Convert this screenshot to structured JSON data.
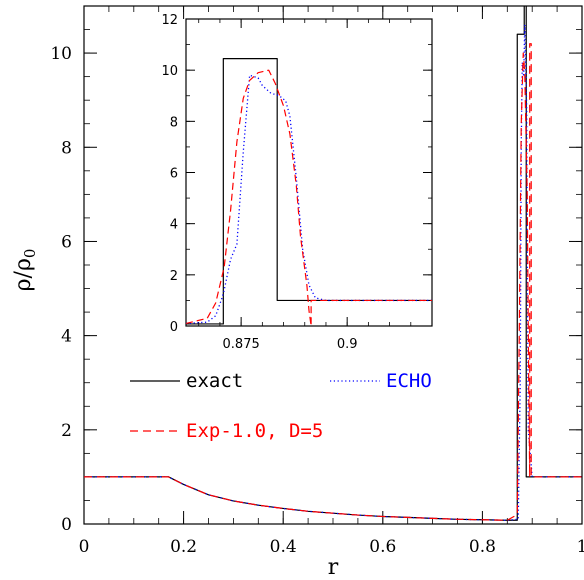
{
  "chart_data": [
    {
      "type": "line",
      "xlabel": "r",
      "ylabel": "ρ/ρ0",
      "xlim": [
        0,
        1
      ],
      "ylim": [
        0,
        11
      ],
      "x_ticks": [
        0,
        0.2,
        0.4,
        0.6,
        0.8,
        1
      ],
      "x_tick_labels": [
        "0",
        "0.2",
        "0.4",
        "0.6",
        "0.8",
        "1"
      ],
      "y_ticks": [
        0,
        2,
        4,
        6,
        8,
        10
      ],
      "y_tick_labels": [
        "0",
        "2",
        "4",
        "6",
        "8",
        "10"
      ],
      "legend": [
        {
          "name": "exact",
          "color": "#000000",
          "style": "solid"
        },
        {
          "name": "ECHO",
          "color": "#0000ff",
          "style": "dotted"
        },
        {
          "name": "Exp-1.0, D=5",
          "color": "#ff0000",
          "style": "dashed"
        }
      ],
      "series": [
        {
          "name": "exact",
          "color": "#000000",
          "style": "solid",
          "x": [
            0,
            0.17,
            0.2,
            0.25,
            0.3,
            0.35,
            0.4,
            0.45,
            0.5,
            0.55,
            0.6,
            0.65,
            0.7,
            0.75,
            0.8,
            0.85,
            0.87,
            0.87,
            0.884,
            0.884,
            0.888,
            0.888,
            1
          ],
          "y": [
            1,
            1,
            0.84,
            0.62,
            0.49,
            0.4,
            0.33,
            0.27,
            0.23,
            0.19,
            0.16,
            0.14,
            0.12,
            0.1,
            0.09,
            0.08,
            0.08,
            10.4,
            10.4,
            11.4,
            11.4,
            1,
            1
          ]
        },
        {
          "name": "ECHO",
          "color": "#0000ff",
          "style": "dotted",
          "x": [
            0,
            0.17,
            0.2,
            0.25,
            0.3,
            0.35,
            0.4,
            0.45,
            0.5,
            0.55,
            0.6,
            0.65,
            0.7,
            0.75,
            0.8,
            0.85,
            0.872,
            0.876,
            0.878,
            0.88,
            0.883,
            0.885,
            0.889,
            0.89,
            0.892,
            0.9,
            1
          ],
          "y": [
            1,
            1,
            0.84,
            0.62,
            0.49,
            0.4,
            0.33,
            0.27,
            0.23,
            0.19,
            0.16,
            0.14,
            0.12,
            0.1,
            0.09,
            0.08,
            0.1,
            3,
            8,
            9.8,
            9.5,
            10.6,
            8.8,
            6,
            2,
            1,
            1
          ]
        },
        {
          "name": "Exp-1.0, D=5",
          "color": "#ff0000",
          "style": "dashed",
          "x": [
            0,
            0.17,
            0.2,
            0.25,
            0.3,
            0.35,
            0.4,
            0.45,
            0.5,
            0.55,
            0.6,
            0.65,
            0.7,
            0.75,
            0.8,
            0.85,
            0.87,
            0.874,
            0.878,
            0.882,
            0.885,
            0.89,
            0.893,
            0.895,
            0.895,
            0.898,
            0.898,
            1
          ],
          "y": [
            1,
            1,
            0.84,
            0.62,
            0.49,
            0.4,
            0.33,
            0.27,
            0.23,
            0.19,
            0.16,
            0.14,
            0.12,
            0.1,
            0.09,
            0.08,
            0.2,
            4,
            8.5,
            10,
            9.6,
            7,
            3,
            1,
            10.2,
            10.2,
            1,
            1
          ]
        }
      ]
    },
    {
      "type": "line",
      "title": "",
      "xlim": [
        0.862,
        0.92
      ],
      "ylim": [
        0,
        12
      ],
      "x_ticks": [
        0.875,
        0.9
      ],
      "x_tick_labels": [
        "0.875",
        "0.9"
      ],
      "y_ticks": [
        0,
        2,
        4,
        6,
        8,
        10,
        12
      ],
      "y_tick_labels": [
        "0",
        "2",
        "4",
        "6",
        "8",
        "10",
        "12"
      ],
      "series": [
        {
          "name": "exact",
          "color": "#000000",
          "style": "solid",
          "x": [
            0.862,
            0.8708,
            0.8708,
            0.8835,
            0.8835,
            0.92
          ],
          "y": [
            0.08,
            0.08,
            10.45,
            10.45,
            1,
            1
          ]
        },
        {
          "name": "ECHO",
          "color": "#0000ff",
          "style": "dotted",
          "x": [
            0.862,
            0.867,
            0.869,
            0.8705,
            0.871,
            0.8725,
            0.874,
            0.8755,
            0.877,
            0.879,
            0.88,
            0.882,
            0.884,
            0.8855,
            0.8865,
            0.888,
            0.8895,
            0.891,
            0.8925,
            0.895,
            0.92
          ],
          "y": [
            0.1,
            0.15,
            0.4,
            1.1,
            1.4,
            2.6,
            3.2,
            6.8,
            9.8,
            9.7,
            9.4,
            9.1,
            9.0,
            8.8,
            8.2,
            5.8,
            3.0,
            1.6,
            1.1,
            1.0,
            1.0
          ]
        },
        {
          "name": "Exp-1.0, D=5",
          "color": "#ff0000",
          "style": "dashed",
          "x": [
            0.862,
            0.867,
            0.869,
            0.871,
            0.8725,
            0.874,
            0.8755,
            0.877,
            0.879,
            0.8815,
            0.883,
            0.885,
            0.8865,
            0.888,
            0.889,
            0.8905,
            0.891,
            0.8915,
            0.8915,
            0.92
          ],
          "y": [
            0.1,
            0.3,
            0.9,
            2.3,
            4.5,
            7.2,
            8.9,
            9.6,
            9.9,
            10.0,
            9.5,
            8.6,
            7.5,
            5.5,
            3.5,
            1.6,
            0.6,
            0,
            1.0,
            1.0
          ]
        }
      ]
    }
  ]
}
